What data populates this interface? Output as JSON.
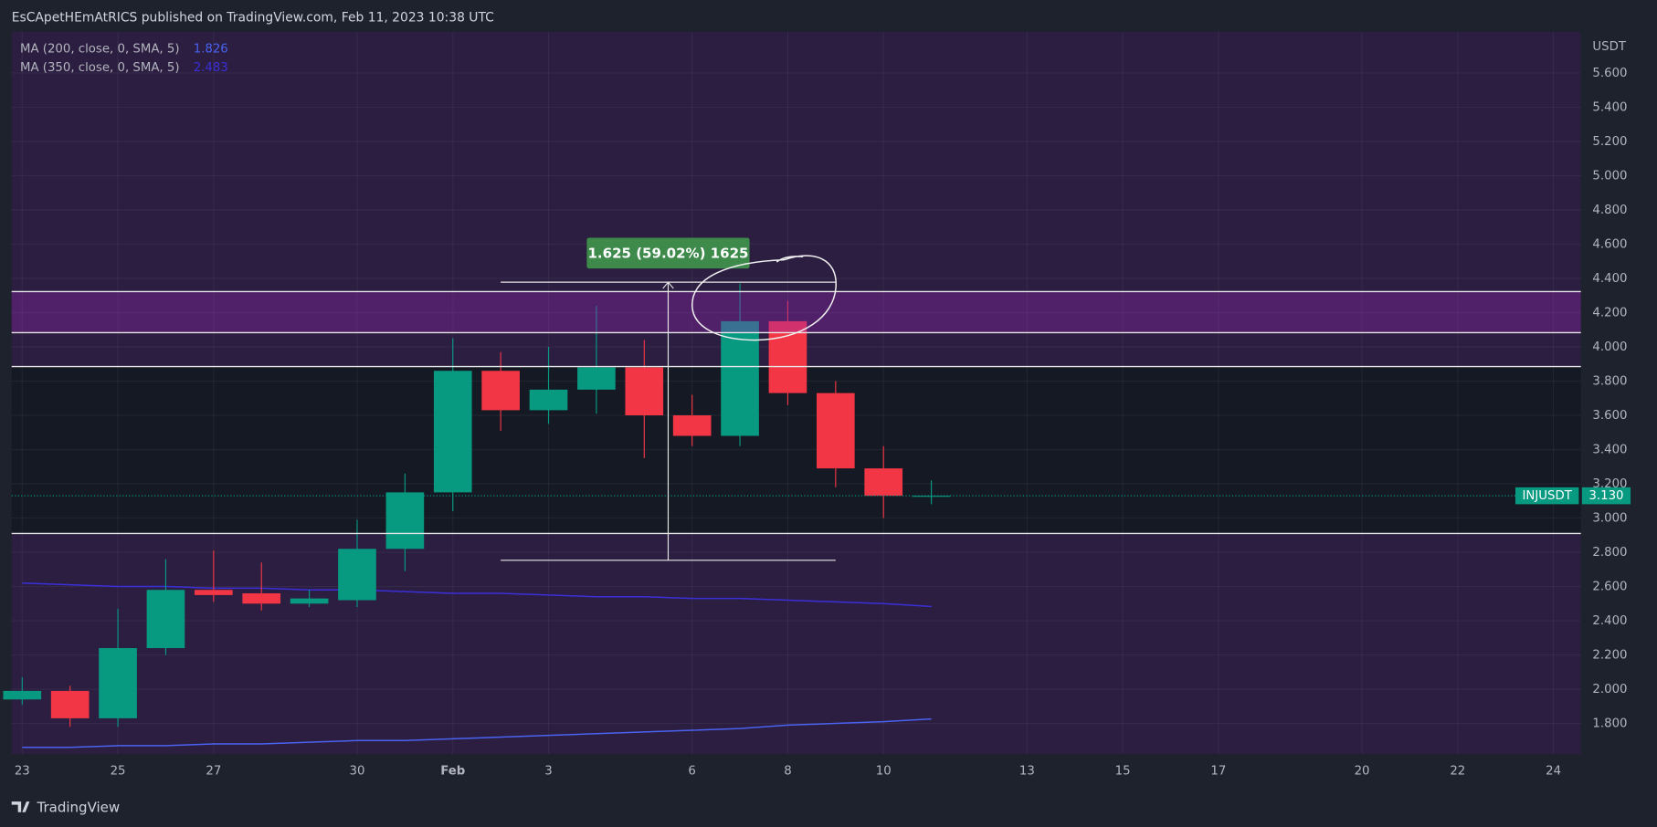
{
  "header": {
    "text": "EsCApetHEmAtRICS published on TradingView.com, Feb 11, 2023 10:38 UTC"
  },
  "footer": {
    "brand": "TradingView"
  },
  "chart_data": {
    "type": "candlestick",
    "symbol": "INJUSDT",
    "currency": "USDT",
    "categories": [
      "23",
      null,
      "25",
      null,
      "27",
      null,
      null,
      "30",
      null,
      "Feb",
      null,
      "3",
      null,
      null,
      "6",
      null,
      "8",
      null,
      "10",
      null,
      null,
      "13",
      null,
      "15",
      null,
      "17",
      null,
      null,
      "20",
      null,
      "22",
      null,
      "24"
    ],
    "open": [
      1.94,
      1.99,
      1.83,
      2.24,
      2.58,
      2.56,
      2.5,
      2.52,
      2.82,
      3.15,
      3.86,
      3.63,
      3.75,
      3.88,
      3.6,
      3.48,
      4.15,
      3.73,
      3.29,
      3.13,
      null,
      null,
      null,
      null,
      null,
      null,
      null,
      null,
      null,
      null,
      null,
      null,
      null
    ],
    "high": [
      2.07,
      2.02,
      2.47,
      2.76,
      2.81,
      2.74,
      2.58,
      2.99,
      3.26,
      4.05,
      3.97,
      4.0,
      4.24,
      4.04,
      3.72,
      4.37,
      4.27,
      3.8,
      3.42,
      3.22,
      null,
      null,
      null,
      null,
      null,
      null,
      null,
      null,
      null,
      null,
      null,
      null,
      null
    ],
    "low": [
      1.91,
      1.78,
      1.78,
      2.2,
      2.51,
      2.46,
      2.48,
      2.48,
      2.69,
      3.04,
      3.51,
      3.55,
      3.61,
      3.35,
      3.42,
      3.42,
      3.66,
      3.18,
      3.0,
      3.08,
      null,
      null,
      null,
      null,
      null,
      null,
      null,
      null,
      null,
      null,
      null,
      null,
      null
    ],
    "close": [
      1.99,
      1.83,
      2.24,
      2.58,
      2.55,
      2.5,
      2.53,
      2.82,
      3.15,
      3.86,
      3.63,
      3.75,
      3.88,
      3.6,
      3.48,
      4.15,
      3.73,
      3.29,
      3.13,
      3.13,
      null,
      null,
      null,
      null,
      null,
      null,
      null,
      null,
      null,
      null,
      null,
      null,
      null
    ],
    "up_color": "#089981",
    "down_color": "#f23645",
    "series": [
      {
        "name": "MA (200, close, 0, SMA, 5)",
        "color": "#4a62f0",
        "values": [
          1.66,
          1.66,
          1.67,
          1.67,
          1.68,
          1.68,
          1.69,
          1.7,
          1.7,
          1.71,
          1.72,
          1.73,
          1.74,
          1.75,
          1.76,
          1.77,
          1.79,
          1.8,
          1.81,
          1.826,
          null,
          null,
          null,
          null,
          null,
          null,
          null,
          null,
          null,
          null,
          null,
          null,
          null
        ]
      },
      {
        "name": "MA (350, close, 0, SMA, 5)",
        "color": "#3b2fd8",
        "values": [
          2.62,
          2.61,
          2.6,
          2.6,
          2.59,
          2.59,
          2.58,
          2.58,
          2.57,
          2.56,
          2.56,
          2.55,
          2.54,
          2.54,
          2.53,
          2.53,
          2.52,
          2.51,
          2.5,
          2.483,
          null,
          null,
          null,
          null,
          null,
          null,
          null,
          null,
          null,
          null,
          null,
          null,
          null
        ]
      }
    ],
    "ylim": [
      1.621,
      5.841
    ],
    "yticks": [
      {
        "value": 1.8,
        "label": "1.800"
      },
      {
        "value": 2,
        "label": "2.000"
      },
      {
        "value": 2.2,
        "label": "2.200"
      },
      {
        "value": 2.4,
        "label": "2.400"
      },
      {
        "value": 2.6,
        "label": "2.600"
      },
      {
        "value": 2.8,
        "label": "2.800"
      },
      {
        "value": 3,
        "label": "3.000"
      },
      {
        "value": 3.2,
        "label": "3.200"
      },
      {
        "value": 3.4,
        "label": "3.400"
      },
      {
        "value": 3.6,
        "label": "3.600"
      },
      {
        "value": 3.8,
        "label": "3.800"
      },
      {
        "value": 4,
        "label": "4.000"
      },
      {
        "value": 4.2,
        "label": "4.200"
      },
      {
        "value": 4.4,
        "label": "4.400"
      },
      {
        "value": 4.6,
        "label": "4.600"
      },
      {
        "value": 4.8,
        "label": "4.800"
      },
      {
        "value": 5,
        "label": "5.000"
      },
      {
        "value": 5.2,
        "label": "5.200"
      },
      {
        "value": 5.4,
        "label": "5.400"
      },
      {
        "value": 5.6,
        "label": "5.600"
      }
    ],
    "grid": true,
    "last_price": {
      "value": 3.13,
      "label": "3.130"
    },
    "hlines": [
      4.323,
      4.083,
      3.885,
      2.91
    ],
    "measure": {
      "from": 2.753,
      "to": 4.378,
      "label": "1.625 (59.02%) 1625"
    }
  }
}
